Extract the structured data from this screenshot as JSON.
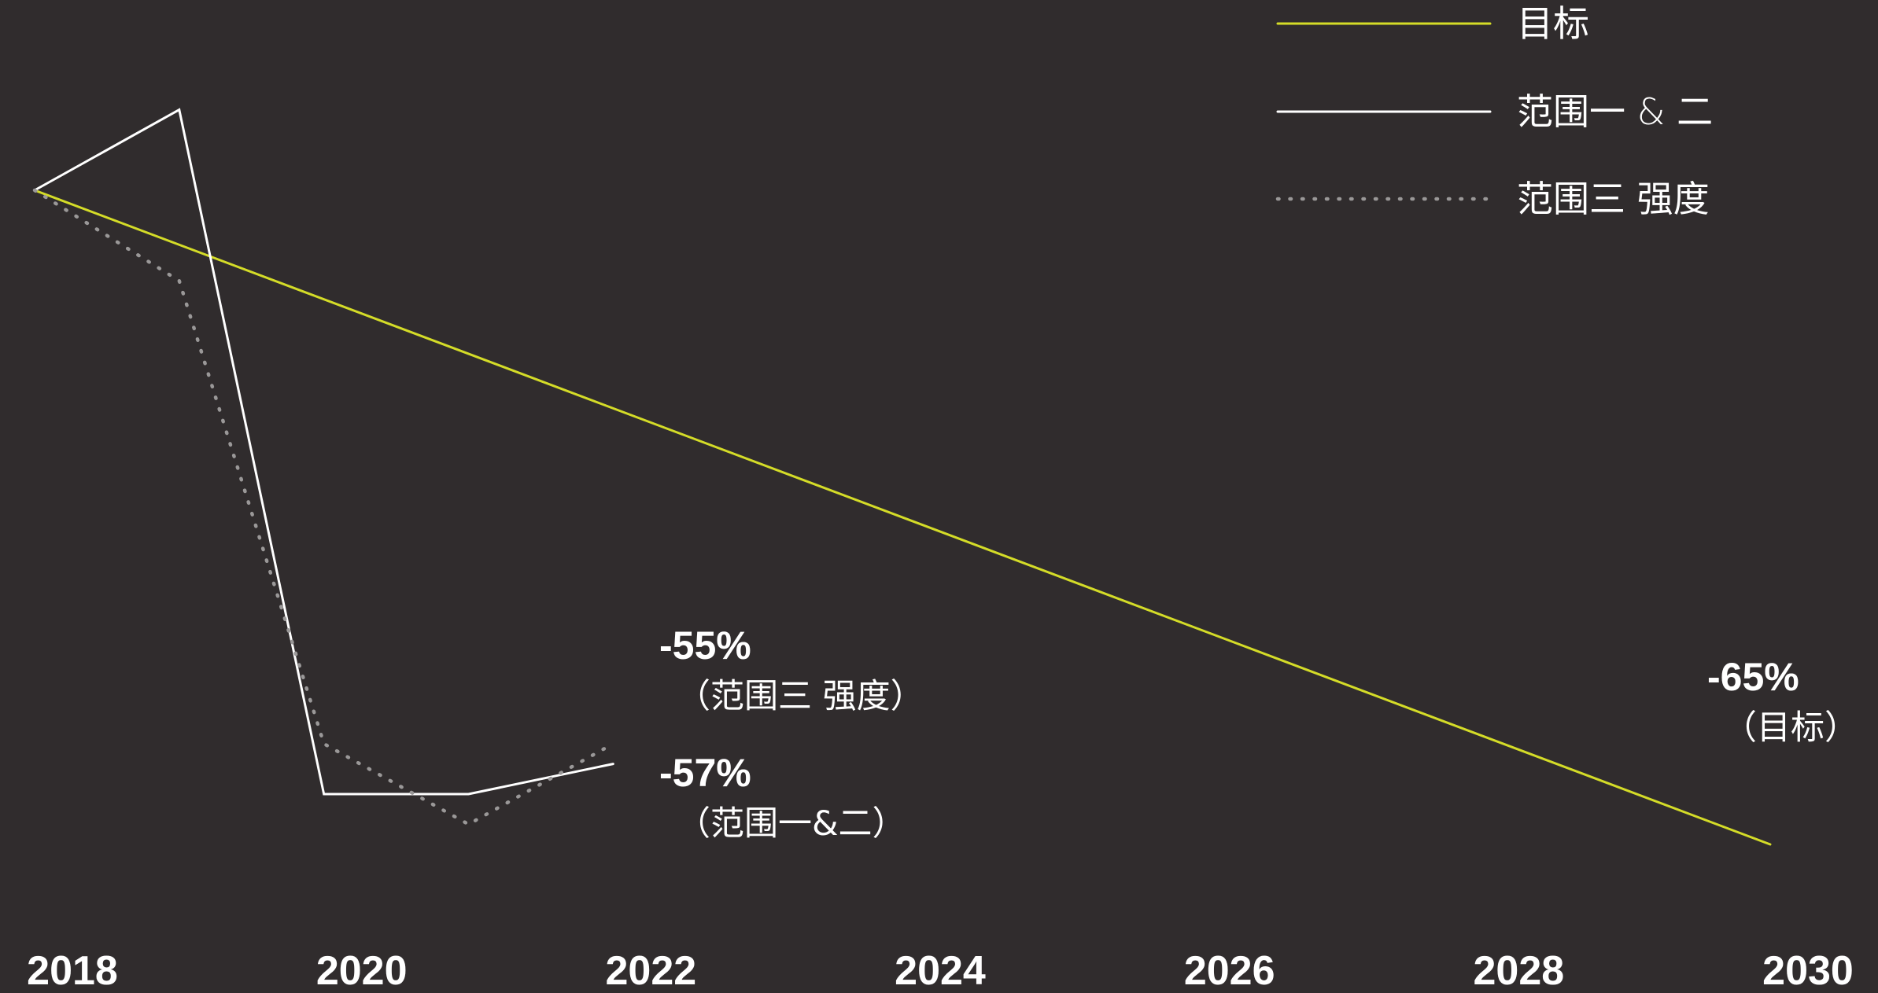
{
  "chart_data": {
    "type": "line",
    "x_ticks": [
      "2018",
      "2020",
      "2022",
      "2024",
      "2026",
      "2028",
      "2030"
    ],
    "xlim": [
      2018,
      2030
    ],
    "ylim": [
      -70,
      10
    ],
    "grid": false,
    "legend_placement": "top-right",
    "series": [
      {
        "name": "目标",
        "style": "solid",
        "color": "#d4dc28",
        "x": [
          2018,
          2030
        ],
        "y": [
          0,
          -65
        ]
      },
      {
        "name": "范围一 & 二",
        "style": "solid",
        "color": "#ffffff",
        "x": [
          2018,
          2019,
          2020,
          2021,
          2022
        ],
        "y": [
          0,
          8,
          -60,
          -60,
          -57
        ]
      },
      {
        "name": "范围三 强度",
        "style": "dotted",
        "color": "#9a9898",
        "x": [
          2018,
          2019,
          2020,
          2021,
          2022
        ],
        "y": [
          0,
          -9,
          -55,
          -63,
          -55
        ]
      }
    ],
    "annotations": [
      {
        "value": "-55%",
        "label": "（范围三 强度）",
        "x": 2022,
        "y": -55
      },
      {
        "value": "-57%",
        "label": "（范围一&二）",
        "x": 2022,
        "y": -57
      },
      {
        "value": "-65%",
        "label": "（目标）",
        "x": 2030,
        "y": -65
      }
    ]
  }
}
